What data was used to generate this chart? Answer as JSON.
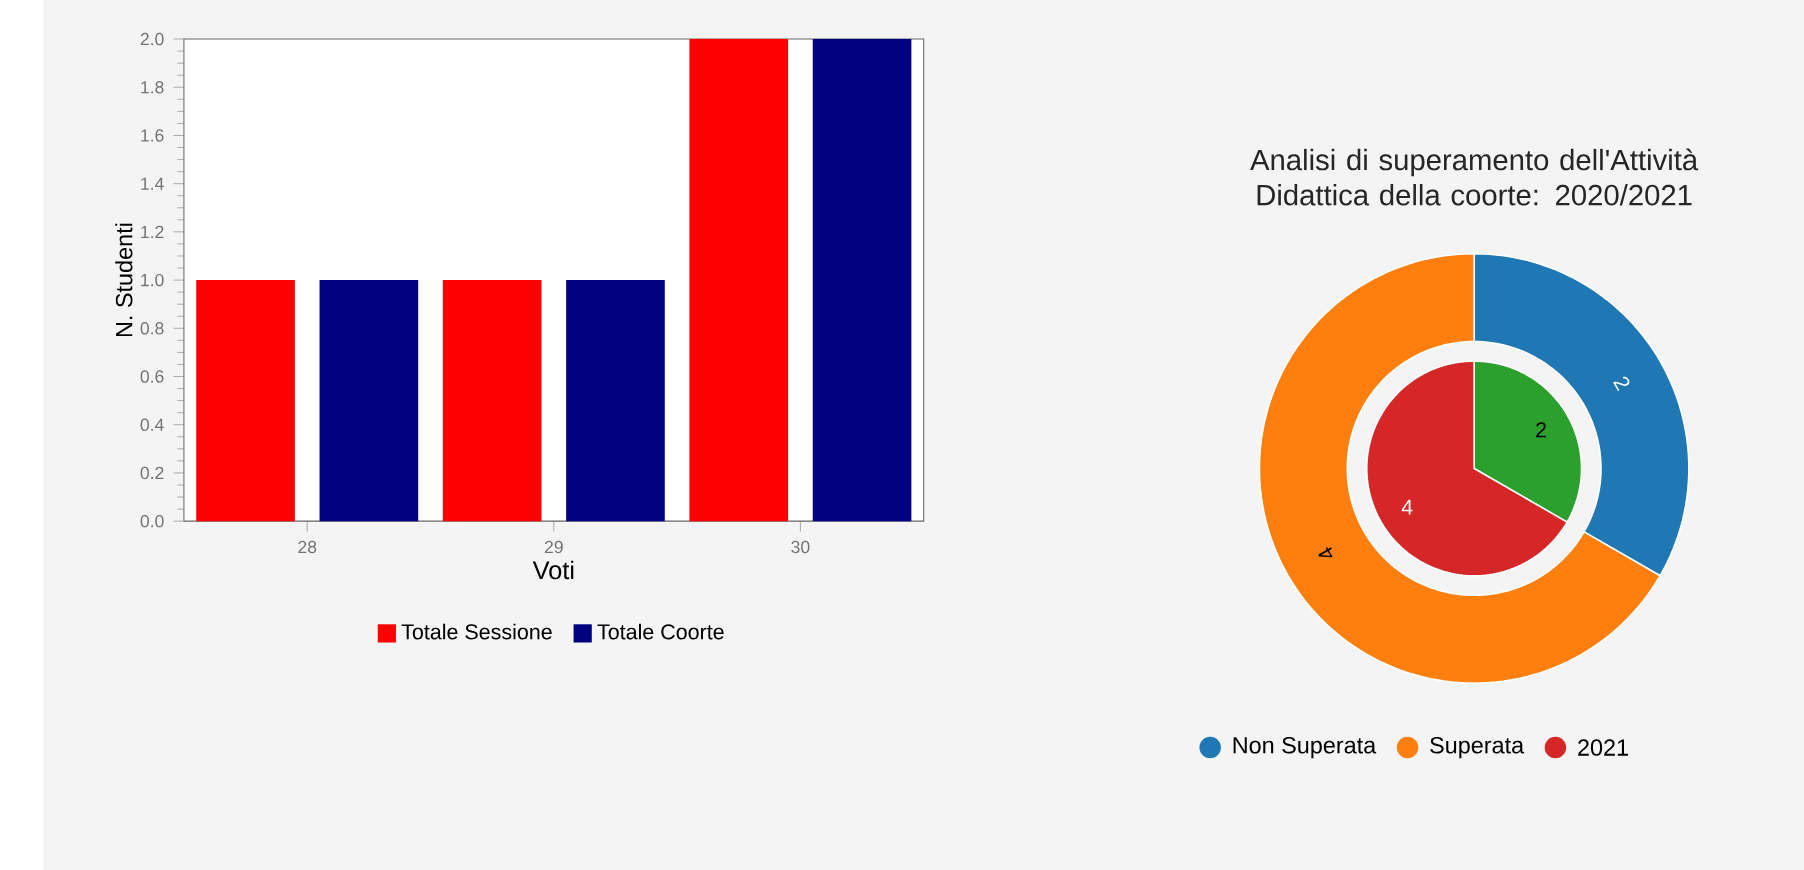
{
  "chart_data": [
    {
      "type": "bar",
      "xlabel": "Voti",
      "ylabel": "N. Studenti",
      "categories": [
        "28",
        "29",
        "30"
      ],
      "series": [
        {
          "name": "Totale Sessione",
          "color": "#ff0000",
          "values": [
            1,
            1,
            2
          ]
        },
        {
          "name": "Totale Coorte",
          "color": "#000080",
          "values": [
            1,
            1,
            2
          ]
        }
      ],
      "ylim": [
        0,
        2
      ],
      "yticks": [
        {
          "value": 0,
          "label": "0.0"
        },
        {
          "value": 0.2,
          "label": "0.2"
        },
        {
          "value": 0.4,
          "label": "0.4"
        },
        {
          "value": 0.6,
          "label": "0.6"
        },
        {
          "value": 0.8,
          "label": "0.8"
        },
        {
          "value": 1,
          "label": "1.0"
        },
        {
          "value": 1.2,
          "label": "1.2"
        },
        {
          "value": 1.4,
          "label": "1.4"
        },
        {
          "value": 1.6,
          "label": "1.6"
        },
        {
          "value": 1.8,
          "label": "1.8"
        },
        {
          "value": 2,
          "label": "2.0"
        }
      ],
      "legend": "bottom"
    },
    {
      "type": "donut",
      "title": "Analisi di superamento dell'Attività Didattica della coorte: 2020/2021",
      "categories": [
        "Non Superata",
        "Superata"
      ],
      "values": [
        2,
        4
      ],
      "colors": [
        "#1f77b4",
        "#ff7f0e"
      ],
      "data_labels": true,
      "legend": "bottom"
    },
    {
      "type": "pie",
      "categories": [
        null,
        "2021"
      ],
      "values": [
        2,
        4
      ],
      "colors": [
        "#2ca02c",
        "#d62728"
      ],
      "data_labels": true,
      "legend": "bottom"
    }
  ]
}
